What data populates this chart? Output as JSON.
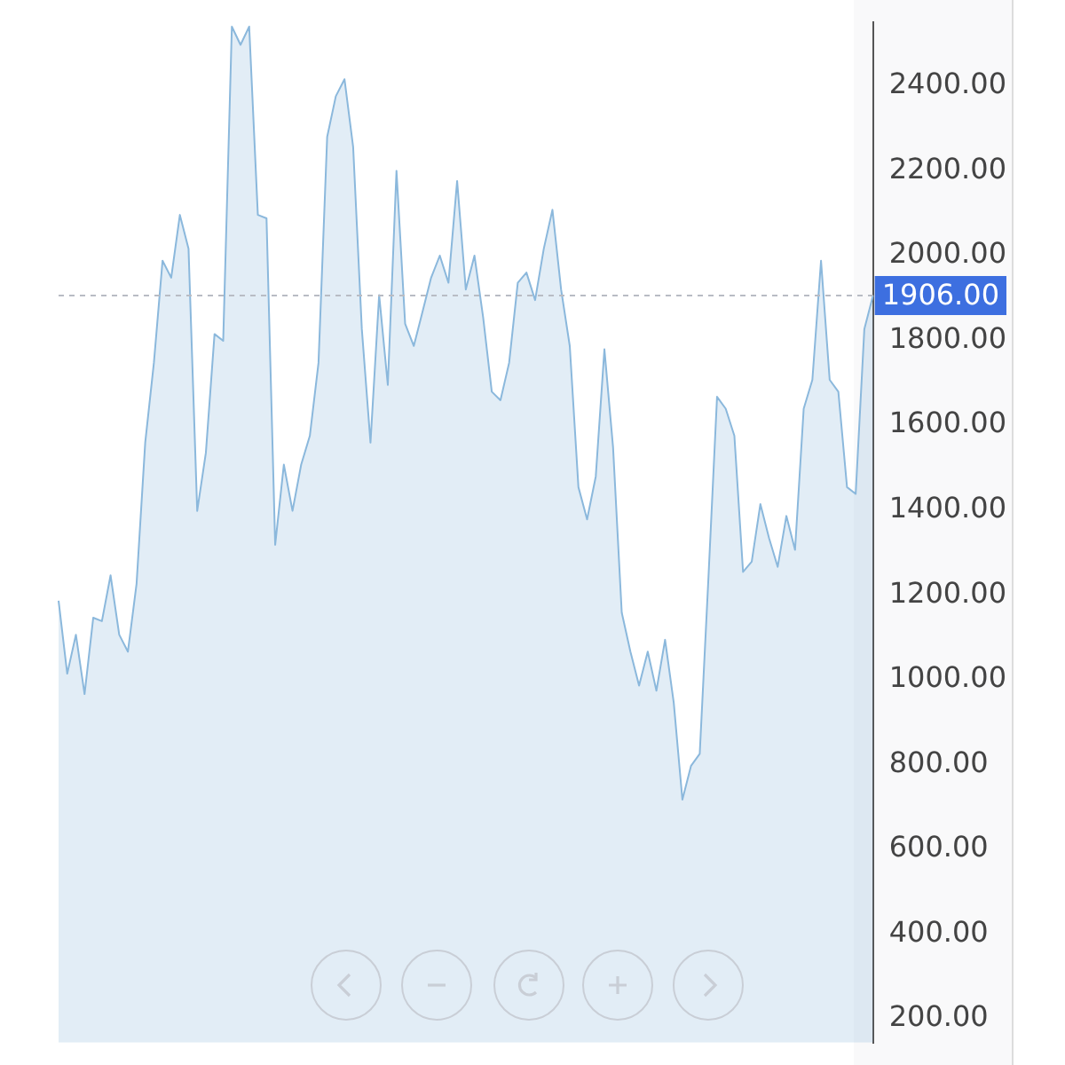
{
  "chart_data": {
    "type": "area",
    "categories": [
      null,
      null,
      null,
      null,
      null,
      null,
      null,
      null,
      null,
      null,
      null,
      null,
      null,
      null,
      null,
      null,
      null,
      null,
      null,
      null,
      null,
      null,
      null,
      null,
      null,
      null,
      null,
      null,
      null,
      null,
      null,
      null,
      null,
      null,
      null,
      null,
      null,
      null,
      null,
      null,
      null,
      null,
      null,
      null,
      null,
      null,
      null,
      null,
      null,
      null,
      null,
      null,
      null,
      null,
      null,
      null,
      null,
      null,
      null,
      null,
      null,
      null,
      null,
      null,
      null,
      null,
      null,
      null,
      null,
      null,
      null,
      null,
      null,
      null,
      null,
      null,
      null,
      null,
      null,
      null,
      null,
      null,
      null,
      null,
      null,
      null,
      null,
      null,
      null,
      null,
      null,
      null,
      null,
      null,
      null
    ],
    "series": [
      {
        "color": "#8bb8dc",
        "values": [
          1186,
          1014,
          1106,
          966,
          1146,
          1138,
          1246,
          1106,
          1066,
          1226,
          1559,
          1747,
          1988,
          1948,
          2096,
          2016,
          1398,
          1535,
          1815,
          1799,
          2540,
          2497,
          2540,
          2096,
          2088,
          1318,
          1507,
          1398,
          1507,
          1575,
          1747,
          2280,
          2376,
          2416,
          2256,
          1827,
          1559,
          1907,
          1695,
          2200,
          1839,
          1787,
          1867,
          1948,
          2000,
          1936,
          2176,
          1920,
          2000,
          1855,
          1679,
          1659,
          1747,
          1936,
          1960,
          1895,
          2016,
          2108,
          1920,
          1787,
          1454,
          1378,
          1479,
          1779,
          1547,
          1158,
          1066,
          986,
          1066,
          974,
          1094,
          946,
          717,
          797,
          825,
          1238,
          1667,
          1639,
          1575,
          1254,
          1278,
          1414,
          1334,
          1266,
          1386,
          1306,
          1639,
          1707,
          1988,
          1707,
          1679,
          1454,
          1438,
          1827,
          1906
        ]
      }
    ],
    "ylim": [
      144,
      2550
    ],
    "yticks": [
      {
        "value": 200,
        "label": "200.00"
      },
      {
        "value": 400,
        "label": "400.00"
      },
      {
        "value": 600,
        "label": "600.00"
      },
      {
        "value": 800,
        "label": "800.00"
      },
      {
        "value": 1000,
        "label": "1000.00"
      },
      {
        "value": 1200,
        "label": "1200.00"
      },
      {
        "value": 1400,
        "label": "1400.00"
      },
      {
        "value": 1600,
        "label": "1600.00"
      },
      {
        "value": 1800,
        "label": "1800.00"
      },
      {
        "value": 2000,
        "label": "2000.00"
      },
      {
        "value": 2200,
        "label": "2200.00"
      },
      {
        "value": 2400,
        "label": "2400.00"
      }
    ],
    "ref_lines": [
      {
        "axis": "y",
        "value": 1906,
        "label": "1906.00",
        "color": "#b8bcc4",
        "line_style": "dashed"
      }
    ],
    "grid": false,
    "legend": false,
    "tick_labels": "y"
  }
}
